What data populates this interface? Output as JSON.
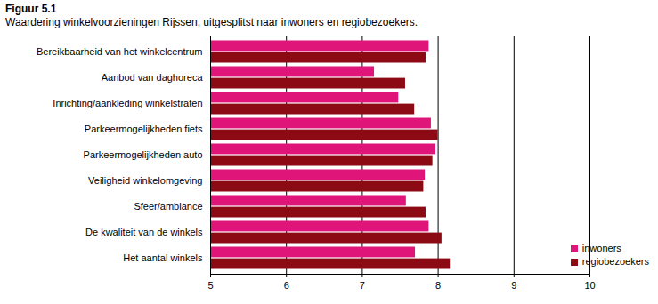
{
  "chart_data": {
    "type": "bar",
    "title": "Figuur 5.1",
    "subtitle": "Waardering winkelvoorzieningen Rijssen, uitgesplitst naar inwoners en regiobezoekers.",
    "orientation": "horizontal",
    "categories": [
      "Bereikbaarheid van het winkelcentrum",
      "Aanbod van daghoreca",
      "Inrichting/aankleding winkelstraten",
      "Parkeermogelijkheden fiets",
      "Parkeermogelijkheden auto",
      "Veiligheid winkelomgeving",
      "Sfeer/ambiance",
      "De kwaliteit van de winkels",
      "Het aantal winkels"
    ],
    "series": [
      {
        "name": "inwoners",
        "color": "#e0157a",
        "values": [
          7.88,
          7.16,
          7.48,
          7.91,
          7.97,
          7.83,
          7.58,
          7.88,
          7.7
        ]
      },
      {
        "name": "regiobezoekers",
        "color": "#8b0a14",
        "values": [
          7.84,
          7.57,
          7.69,
          8.0,
          7.93,
          7.81,
          7.84,
          8.05,
          8.16
        ]
      }
    ],
    "xlim": [
      5,
      10
    ],
    "xticks": [
      5,
      6,
      7,
      8,
      9,
      10
    ],
    "grid": true,
    "legend": "lower right"
  }
}
